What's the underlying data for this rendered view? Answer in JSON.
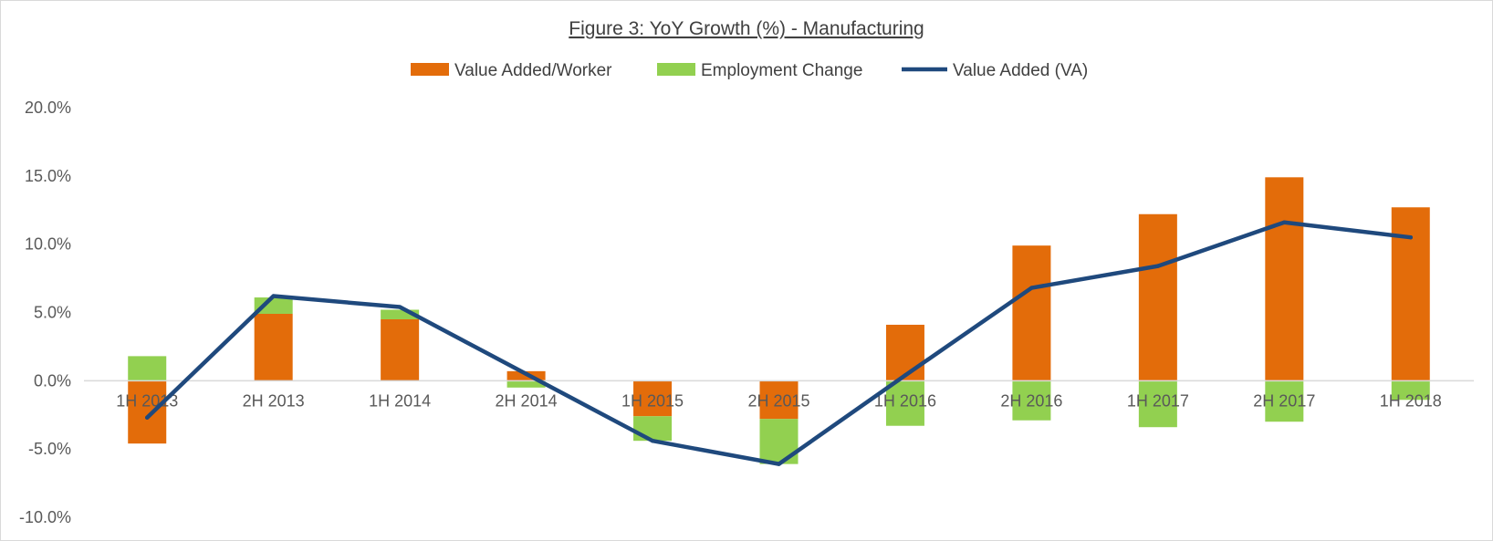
{
  "chart_data": {
    "type": "bar",
    "title": "Figure 3: YoY Growth (%) - Manufacturing",
    "xlabel": "",
    "ylabel": "",
    "categories": [
      "1H 2013",
      "2H 2013",
      "1H 2014",
      "2H 2014",
      "1H 2015",
      "2H 2015",
      "1H 2016",
      "2H 2016",
      "1H 2017",
      "2H 2017",
      "1H 2018"
    ],
    "stacked": true,
    "series": [
      {
        "name": "Value Added/Worker",
        "kind": "bar",
        "color": "#E36C0A",
        "values": [
          -4.6,
          4.9,
          4.5,
          0.7,
          -2.6,
          -2.8,
          4.1,
          9.9,
          12.2,
          14.9,
          12.7
        ]
      },
      {
        "name": "Employment Change",
        "kind": "bar",
        "color": "#92D050",
        "values": [
          1.8,
          1.2,
          0.7,
          -0.5,
          -1.8,
          -3.3,
          -3.3,
          -2.9,
          -3.4,
          -3.0,
          -1.4
        ]
      },
      {
        "name": "Value Added (VA)",
        "kind": "line",
        "color": "#1F497D",
        "values": [
          -2.7,
          6.2,
          5.4,
          0.5,
          -4.4,
          -6.1,
          0.4,
          6.8,
          8.4,
          11.6,
          10.5
        ]
      }
    ],
    "ylim": [
      -10,
      20
    ],
    "yticks": [
      -10,
      -5,
      0,
      5,
      10,
      15,
      20
    ],
    "ytick_labels": [
      "-10.0%",
      "-5.0%",
      "0.0%",
      "5.0%",
      "10.0%",
      "15.0%",
      "20.0%"
    ],
    "grid": false,
    "legend_position": "top-center"
  }
}
